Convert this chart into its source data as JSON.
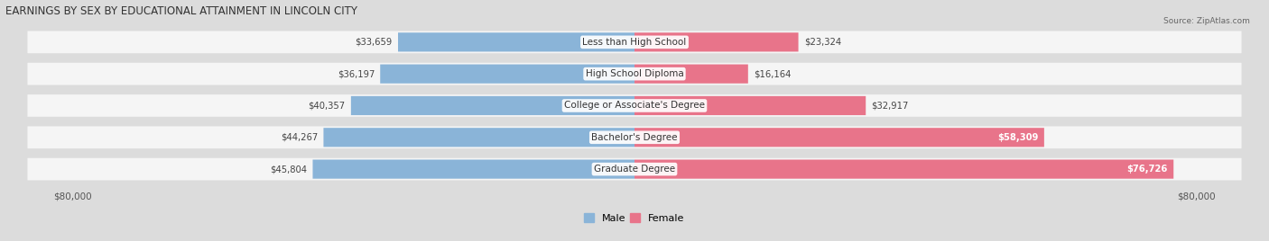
{
  "title": "EARNINGS BY SEX BY EDUCATIONAL ATTAINMENT IN LINCOLN CITY",
  "source": "Source: ZipAtlas.com",
  "categories": [
    "Less than High School",
    "High School Diploma",
    "College or Associate's Degree",
    "Bachelor's Degree",
    "Graduate Degree"
  ],
  "male_values": [
    33659,
    36197,
    40357,
    44267,
    45804
  ],
  "female_values": [
    23324,
    16164,
    32917,
    58309,
    76726
  ],
  "male_color": "#8ab4d8",
  "female_color": "#e8748a",
  "male_label": "Male",
  "female_label": "Female",
  "xlim": 80000,
  "x_tick_left": "$80,000",
  "x_tick_right": "$80,000",
  "bg_color": "#dcdcdc",
  "row_bg_color": "#f5f5f5",
  "title_fontsize": 8.5,
  "label_fontsize": 7.5,
  "value_fontsize": 7.2,
  "legend_fontsize": 8
}
